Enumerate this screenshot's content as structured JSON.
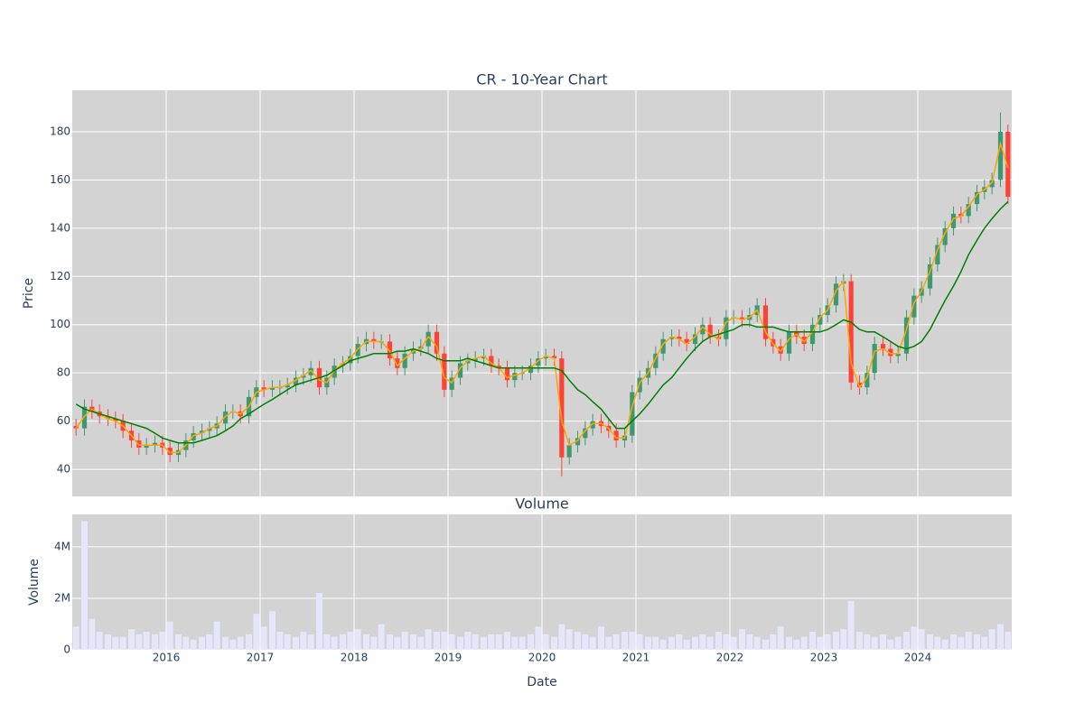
{
  "chart_data": {
    "type": "candlestick",
    "title": "CR - 10-Year Chart",
    "x_label": "Date",
    "y_label": "Price",
    "xlim": [
      2015.0,
      2025.0
    ],
    "xticks": [
      2016,
      2017,
      2018,
      2019,
      2020,
      2021,
      2022,
      2023,
      2024
    ],
    "ylim": [
      28.8,
      197.2
    ],
    "yticks": [
      40,
      60,
      80,
      100,
      120,
      140,
      160,
      180
    ],
    "grid": true,
    "increasing_color": "#3d9970",
    "decreasing_color": "#ff4136",
    "x": [
      2015.04,
      2015.13,
      2015.21,
      2015.29,
      2015.38,
      2015.46,
      2015.54,
      2015.63,
      2015.71,
      2015.79,
      2015.88,
      2015.96,
      2016.04,
      2016.13,
      2016.21,
      2016.29,
      2016.38,
      2016.46,
      2016.54,
      2016.63,
      2016.71,
      2016.79,
      2016.88,
      2016.96,
      2017.04,
      2017.13,
      2017.21,
      2017.29,
      2017.38,
      2017.46,
      2017.54,
      2017.63,
      2017.71,
      2017.79,
      2017.88,
      2017.96,
      2018.04,
      2018.13,
      2018.21,
      2018.29,
      2018.38,
      2018.46,
      2018.54,
      2018.63,
      2018.71,
      2018.79,
      2018.88,
      2018.96,
      2019.04,
      2019.13,
      2019.21,
      2019.29,
      2019.38,
      2019.46,
      2019.54,
      2019.63,
      2019.71,
      2019.79,
      2019.88,
      2019.96,
      2020.04,
      2020.13,
      2020.21,
      2020.29,
      2020.38,
      2020.46,
      2020.54,
      2020.63,
      2020.71,
      2020.79,
      2020.88,
      2020.96,
      2021.04,
      2021.13,
      2021.21,
      2021.29,
      2021.38,
      2021.46,
      2021.54,
      2021.63,
      2021.71,
      2021.79,
      2021.88,
      2021.96,
      2022.04,
      2022.13,
      2022.21,
      2022.29,
      2022.38,
      2022.46,
      2022.54,
      2022.63,
      2022.71,
      2022.79,
      2022.88,
      2022.96,
      2023.04,
      2023.13,
      2023.21,
      2023.29,
      2023.38,
      2023.46,
      2023.54,
      2023.63,
      2023.71,
      2023.79,
      2023.88,
      2023.96,
      2024.04,
      2024.13,
      2024.21,
      2024.29,
      2024.38,
      2024.46,
      2024.54,
      2024.63,
      2024.71,
      2024.79,
      2024.88,
      2024.96
    ],
    "open": [
      58,
      57,
      66,
      64,
      62,
      61,
      60,
      56,
      52,
      49,
      50,
      51,
      49,
      46,
      48,
      52,
      55,
      56,
      57,
      59,
      64,
      64,
      62,
      70,
      74,
      73,
      74,
      74,
      75,
      78,
      79,
      82,
      74,
      78,
      83,
      84,
      87,
      92,
      94,
      93,
      93,
      86,
      82,
      88,
      90,
      91,
      97,
      88,
      73,
      78,
      84,
      85,
      86,
      87,
      83,
      82,
      77,
      80,
      80,
      83,
      86,
      87,
      86,
      45,
      50,
      53,
      57,
      60,
      58,
      56,
      52,
      54,
      72,
      78,
      82,
      88,
      94,
      95,
      94,
      92,
      96,
      100,
      95,
      94,
      103,
      103,
      102,
      104,
      108,
      94,
      91,
      88,
      97,
      95,
      92,
      100,
      104,
      108,
      117,
      118,
      76,
      74,
      80,
      92,
      90,
      87,
      88,
      103,
      112,
      115,
      125,
      133,
      140,
      146,
      145,
      150,
      155,
      157,
      160,
      180
    ],
    "high": [
      61,
      69,
      69,
      67,
      65,
      64,
      63,
      59,
      55,
      53,
      54,
      54,
      52,
      51,
      55,
      58,
      59,
      60,
      62,
      67,
      67,
      67,
      73,
      77,
      77,
      77,
      77,
      78,
      81,
      82,
      85,
      85,
      81,
      86,
      87,
      90,
      95,
      97,
      97,
      96,
      96,
      89,
      91,
      93,
      94,
      100,
      100,
      91,
      81,
      87,
      88,
      89,
      90,
      90,
      86,
      85,
      83,
      83,
      86,
      89,
      90,
      90,
      89,
      53,
      56,
      60,
      63,
      63,
      61,
      59,
      57,
      75,
      81,
      85,
      91,
      97,
      98,
      98,
      97,
      99,
      103,
      103,
      98,
      106,
      106,
      106,
      107,
      111,
      111,
      97,
      94,
      100,
      100,
      98,
      103,
      107,
      111,
      120,
      121,
      121,
      79,
      83,
      95,
      95,
      93,
      91,
      106,
      115,
      118,
      128,
      136,
      143,
      149,
      149,
      153,
      158,
      160,
      163,
      188,
      183
    ],
    "low": [
      54,
      54,
      61,
      59,
      58,
      57,
      53,
      49,
      46,
      46,
      47,
      46,
      43,
      43,
      45,
      49,
      52,
      53,
      54,
      56,
      61,
      59,
      59,
      67,
      70,
      70,
      71,
      71,
      72,
      75,
      76,
      71,
      71,
      75,
      80,
      81,
      84,
      89,
      90,
      90,
      83,
      79,
      79,
      85,
      87,
      88,
      85,
      70,
      70,
      75,
      81,
      82,
      83,
      80,
      79,
      74,
      74,
      77,
      77,
      80,
      83,
      83,
      37,
      42,
      47,
      50,
      54,
      55,
      53,
      49,
      49,
      51,
      69,
      75,
      79,
      85,
      91,
      91,
      89,
      89,
      93,
      92,
      91,
      91,
      100,
      99,
      99,
      101,
      91,
      88,
      85,
      85,
      92,
      89,
      89,
      97,
      101,
      105,
      114,
      73,
      71,
      71,
      77,
      87,
      84,
      84,
      85,
      100,
      109,
      112,
      122,
      130,
      137,
      142,
      142,
      147,
      152,
      154,
      157,
      150
    ],
    "close": [
      57,
      66,
      64,
      62,
      61,
      60,
      56,
      52,
      49,
      50,
      51,
      49,
      46,
      48,
      52,
      55,
      56,
      57,
      59,
      64,
      64,
      62,
      70,
      74,
      73,
      74,
      74,
      75,
      78,
      79,
      82,
      74,
      78,
      83,
      84,
      87,
      92,
      94,
      93,
      93,
      86,
      82,
      88,
      90,
      91,
      97,
      88,
      73,
      78,
      84,
      85,
      86,
      87,
      83,
      82,
      77,
      80,
      80,
      83,
      86,
      87,
      86,
      45,
      50,
      53,
      57,
      60,
      58,
      56,
      52,
      54,
      72,
      78,
      82,
      88,
      94,
      95,
      94,
      92,
      96,
      100,
      95,
      94,
      103,
      103,
      102,
      104,
      108,
      94,
      91,
      88,
      97,
      95,
      92,
      100,
      104,
      108,
      117,
      118,
      76,
      74,
      80,
      92,
      90,
      87,
      88,
      103,
      112,
      115,
      125,
      133,
      140,
      146,
      145,
      150,
      155,
      157,
      160,
      180,
      153
    ],
    "overlays": [
      {
        "color": "#ffa500",
        "values": [
          57,
          62,
          65,
          63,
          61,
          60,
          58,
          54,
          50,
          50,
          50,
          50,
          47,
          47,
          50,
          54,
          55,
          57,
          58,
          62,
          64,
          63,
          66,
          72,
          73,
          74,
          74,
          75,
          77,
          79,
          81,
          77,
          76,
          81,
          84,
          86,
          90,
          93,
          93,
          93,
          89,
          83,
          86,
          89,
          90,
          95,
          91,
          78,
          76,
          82,
          85,
          86,
          87,
          84,
          82,
          78,
          79,
          80,
          82,
          85,
          87,
          86,
          60,
          50,
          52,
          56,
          59,
          59,
          57,
          53,
          53,
          66,
          76,
          80,
          86,
          92,
          95,
          94,
          92,
          95,
          99,
          96,
          94,
          101,
          103,
          102,
          103,
          106,
          97,
          92,
          89,
          94,
          96,
          93,
          97,
          103,
          106,
          114,
          118,
          84,
          74,
          78,
          89,
          90,
          88,
          88,
          98,
          109,
          114,
          122,
          131,
          138,
          144,
          145,
          149,
          154,
          156,
          159,
          175,
          165
        ]
      },
      {
        "color": "#008000",
        "values": [
          67,
          65,
          64,
          63,
          62,
          61,
          60,
          59,
          58,
          57,
          55,
          53,
          52,
          51,
          51,
          51,
          52,
          53,
          54,
          56,
          58,
          61,
          63,
          65,
          67,
          69,
          71,
          73,
          75,
          76,
          77,
          78,
          79,
          81,
          83,
          85,
          86,
          87,
          88,
          88,
          88,
          89,
          89,
          90,
          89,
          88,
          86,
          85,
          85,
          85,
          86,
          85,
          84,
          83,
          82,
          82,
          82,
          82,
          82,
          82,
          82,
          82,
          81,
          77,
          73,
          71,
          68,
          65,
          61,
          57,
          57,
          60,
          63,
          67,
          71,
          75,
          78,
          82,
          86,
          90,
          93,
          95,
          96,
          97,
          98,
          100,
          100,
          99,
          99,
          99,
          98,
          97,
          97,
          97,
          97,
          97,
          98,
          100,
          102,
          101,
          98,
          97,
          97,
          95,
          93,
          91,
          90,
          91,
          93,
          98,
          104,
          110,
          116,
          122,
          129,
          135,
          140,
          144,
          148,
          151
        ]
      }
    ],
    "volume": {
      "title": "Volume",
      "y_label": "Volume",
      "color": "#e6e6fa",
      "ylim": [
        0,
        5260000
      ],
      "yticks": [
        0,
        {
          "value": 2000000,
          "label": "2M"
        },
        {
          "value": 4000000,
          "label": "4M"
        }
      ],
      "values": [
        900000,
        5000000,
        1200000,
        700000,
        600000,
        500000,
        500000,
        800000,
        600000,
        700000,
        600000,
        700000,
        1100000,
        600000,
        500000,
        400000,
        500000,
        600000,
        1100000,
        500000,
        400000,
        500000,
        600000,
        1400000,
        900000,
        1500000,
        700000,
        600000,
        500000,
        700000,
        600000,
        2200000,
        600000,
        500000,
        600000,
        700000,
        800000,
        600000,
        500000,
        1000000,
        600000,
        500000,
        700000,
        600000,
        500000,
        800000,
        700000,
        700000,
        600000,
        500000,
        700000,
        600000,
        500000,
        600000,
        600000,
        700000,
        500000,
        500000,
        600000,
        900000,
        600000,
        500000,
        1000000,
        800000,
        700000,
        600000,
        500000,
        900000,
        500000,
        600000,
        700000,
        700000,
        600000,
        500000,
        500000,
        400000,
        500000,
        600000,
        400000,
        500000,
        600000,
        500000,
        700000,
        600000,
        500000,
        800000,
        600000,
        500000,
        400000,
        600000,
        900000,
        500000,
        400000,
        500000,
        700000,
        500000,
        600000,
        700000,
        800000,
        1900000,
        700000,
        600000,
        500000,
        600000,
        400000,
        500000,
        700000,
        900000,
        800000,
        600000,
        500000,
        400000,
        600000,
        500000,
        700000,
        600000,
        500000,
        800000,
        1000000,
        700000
      ]
    }
  }
}
